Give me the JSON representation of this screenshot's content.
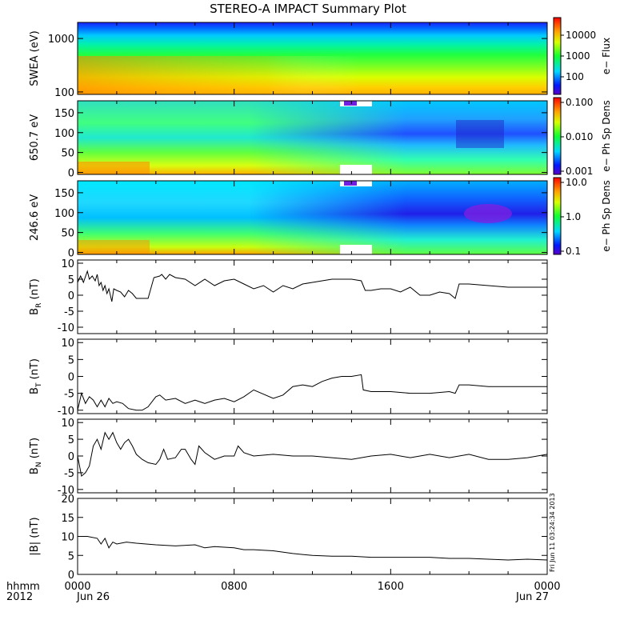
{
  "title": "STEREO-A IMPACT Summary Plot",
  "footer": {
    "left_top": "hhmm",
    "left_bottom": "2012",
    "x_ticks": [
      "0000",
      "0800",
      "1600",
      "0000"
    ],
    "date_start": "Jun 26",
    "date_end": "Jun 27"
  },
  "timestamp": "Fri Jun 11 03:24:34 2013",
  "chart_data": [
    {
      "type": "heatmap",
      "ylabel": "SWEA (eV)",
      "y_scale": "log",
      "ylim": [
        90,
        2000
      ],
      "y_ticks": [
        "1000",
        "100"
      ],
      "colorbar_label": "e− Flux",
      "colorbar_ticks": [
        "10000",
        "1000",
        "100"
      ],
      "xlim_hours": [
        0,
        24
      ]
    },
    {
      "type": "heatmap",
      "ylabel": "650.7 eV",
      "ylim": [
        -5,
        180
      ],
      "y_ticks": [
        "150",
        "100",
        "50",
        "0"
      ],
      "colorbar_label": "e− Ph Sp Dens",
      "colorbar_ticks": [
        "0.100",
        "0.010",
        "0.001"
      ],
      "xlim_hours": [
        0,
        24
      ]
    },
    {
      "type": "heatmap",
      "ylabel": "246.6 eV",
      "ylim": [
        -5,
        180
      ],
      "y_ticks": [
        "150",
        "100",
        "50",
        "0"
      ],
      "colorbar_label": "e− Ph Sp Dens",
      "colorbar_ticks": [
        "10.0",
        "1.0",
        "0.1"
      ],
      "xlim_hours": [
        0,
        24
      ]
    },
    {
      "type": "line",
      "ylabel": "B",
      "ylabel_sub": "R",
      "ylabel_unit": " (nT)",
      "ylim": [
        -12,
        11
      ],
      "y_ticks": [
        "10",
        "5",
        "0",
        "-5",
        "-10"
      ],
      "x": [
        0,
        0.15,
        0.3,
        0.5,
        0.6,
        0.75,
        0.9,
        1.0,
        1.1,
        1.2,
        1.3,
        1.4,
        1.5,
        1.6,
        1.75,
        1.85,
        2.0,
        2.2,
        2.4,
        2.6,
        2.8,
        3.0,
        3.3,
        3.6,
        3.9,
        4.2,
        4.3,
        4.5,
        4.7,
        5.0,
        5.5,
        6.0,
        6.5,
        7.0,
        7.5,
        8.0,
        8.5,
        9.0,
        9.5,
        10.0,
        10.5,
        11.0,
        11.5,
        12.0,
        12.5,
        13.0,
        13.5,
        14.0,
        14.5,
        14.7,
        15.0,
        15.5,
        16.0,
        16.5,
        17.0,
        17.5,
        18.0,
        18.5,
        19.0,
        19.3,
        19.5,
        20.0,
        21.0,
        22.0,
        23.0,
        24.0
      ],
      "y": [
        4,
        6,
        4,
        7.5,
        5,
        6,
        4.5,
        6.5,
        3,
        4,
        1.5,
        3,
        0.5,
        2,
        -2,
        2,
        1.5,
        1,
        -0.5,
        1.5,
        0.5,
        -1,
        -1,
        -1,
        5.5,
        6,
        6.5,
        5,
        6.5,
        5.5,
        5,
        3,
        5,
        3,
        4.5,
        5,
        3.5,
        2,
        3,
        1,
        3,
        2,
        3.5,
        4,
        4.5,
        5,
        5,
        5,
        4.5,
        1.5,
        1.5,
        2,
        2,
        1,
        2.5,
        0,
        0,
        1,
        0.5,
        -1,
        3.5,
        3.5,
        3,
        2.5,
        2.5,
        2.5
      ]
    },
    {
      "type": "line",
      "ylabel": "B",
      "ylabel_sub": "T",
      "ylabel_unit": " (nT)",
      "ylim": [
        -11,
        11
      ],
      "y_ticks": [
        "10",
        "5",
        "0",
        "-5",
        "-10"
      ],
      "x": [
        0,
        0.2,
        0.4,
        0.6,
        0.8,
        1.0,
        1.2,
        1.4,
        1.6,
        1.8,
        2.0,
        2.3,
        2.6,
        3.0,
        3.3,
        3.6,
        4.0,
        4.2,
        4.5,
        5.0,
        5.5,
        6.0,
        6.5,
        7.0,
        7.5,
        8.0,
        8.5,
        9.0,
        10.0,
        10.5,
        11.0,
        11.5,
        12.0,
        12.5,
        13.0,
        13.5,
        14.0,
        14.5,
        14.6,
        15.0,
        16.0,
        17.0,
        18.0,
        19.0,
        19.3,
        19.5,
        20.0,
        21.0,
        22.0,
        23.0,
        24.0
      ],
      "y": [
        -10,
        -5,
        -8,
        -6,
        -7,
        -9,
        -7,
        -9,
        -6.5,
        -8,
        -7.5,
        -8,
        -9.5,
        -10,
        -10,
        -9,
        -6,
        -5.5,
        -7,
        -6.5,
        -8,
        -7,
        -8,
        -7,
        -6.5,
        -7.5,
        -6,
        -4,
        -6.5,
        -5.5,
        -3,
        -2.5,
        -3,
        -1.5,
        -0.5,
        0,
        0,
        0.5,
        -4,
        -4.5,
        -4.5,
        -5,
        -5,
        -4.5,
        -5,
        -2.5,
        -2.5,
        -3,
        -3,
        -3,
        -3
      ]
    },
    {
      "type": "line",
      "ylabel": "B",
      "ylabel_sub": "N",
      "ylabel_unit": " (nT)",
      "ylim": [
        -11,
        11
      ],
      "y_ticks": [
        "10",
        "5",
        "0",
        "-5",
        "-10"
      ],
      "x": [
        0,
        0.2,
        0.4,
        0.6,
        0.8,
        1.0,
        1.2,
        1.4,
        1.6,
        1.8,
        2.0,
        2.2,
        2.4,
        2.6,
        2.8,
        3.0,
        3.3,
        3.6,
        4.0,
        4.2,
        4.4,
        4.6,
        5.0,
        5.3,
        5.5,
        5.8,
        6.0,
        6.2,
        6.5,
        7.0,
        7.5,
        8.0,
        8.2,
        8.5,
        9.0,
        10.0,
        11.0,
        12.0,
        13.0,
        14.0,
        15.0,
        16.0,
        17.0,
        18.0,
        19.0,
        20.0,
        21.0,
        22.0,
        23.0,
        24.0
      ],
      "y": [
        0,
        -6,
        -5,
        -3,
        3,
        5,
        2,
        7,
        5,
        7,
        4,
        2,
        4,
        5,
        3,
        0.5,
        -1,
        -2,
        -2.5,
        -1,
        2,
        -1,
        -0.5,
        2,
        2,
        -1,
        -2.5,
        3,
        1,
        -1,
        0,
        0,
        3,
        1,
        0,
        0.5,
        0,
        0,
        -0.5,
        -1,
        0,
        0.5,
        -0.5,
        0.5,
        -0.5,
        0.5,
        -1,
        -1,
        -0.5,
        0.5
      ]
    },
    {
      "type": "line",
      "ylabel": "|B|",
      "ylabel_sub": "",
      "ylabel_unit": " (nT)",
      "ylim": [
        0,
        20
      ],
      "y_ticks": [
        "20",
        "15",
        "10",
        "5",
        "0"
      ],
      "x": [
        0,
        0.5,
        1.0,
        1.2,
        1.4,
        1.6,
        1.8,
        2.0,
        2.5,
        3.0,
        4.0,
        5.0,
        6.0,
        6.5,
        7.0,
        8.0,
        8.5,
        9.0,
        10.0,
        11.0,
        12.0,
        13.0,
        14.0,
        15.0,
        16.0,
        17.0,
        18.0,
        19.0,
        20.0,
        21.0,
        22.0,
        23.0,
        24.0
      ],
      "y": [
        10,
        10,
        9.5,
        8,
        9.5,
        7,
        8.5,
        8,
        8.5,
        8.2,
        7.8,
        7.5,
        7.8,
        7,
        7.3,
        7,
        6.5,
        6.5,
        6.2,
        5.5,
        5,
        4.8,
        4.8,
        4.5,
        4.5,
        4.5,
        4.5,
        4.2,
        4.2,
        4,
        3.8,
        4,
        3.8
      ]
    }
  ]
}
